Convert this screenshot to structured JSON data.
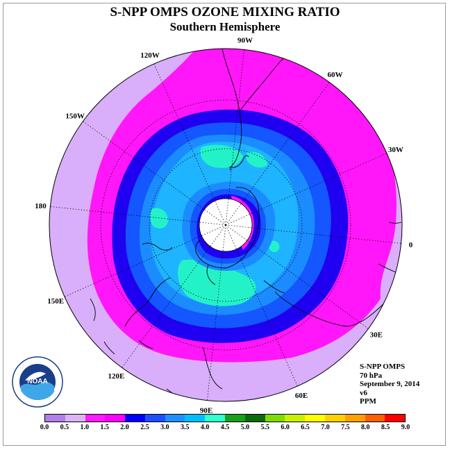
{
  "title": "S-NPP OMPS OZONE MIXING RATIO",
  "subtitle": "Southern Hemisphere",
  "longitude_labels": [
    {
      "lon": -90,
      "text": "90W"
    },
    {
      "lon": -60,
      "text": "60W"
    },
    {
      "lon": -30,
      "text": "30W"
    },
    {
      "lon": 0,
      "text": "0"
    },
    {
      "lon": 30,
      "text": "30E"
    },
    {
      "lon": 60,
      "text": "60E"
    },
    {
      "lon": 90,
      "text": "90E"
    },
    {
      "lon": 120,
      "text": "120E"
    },
    {
      "lon": 150,
      "text": "150E"
    },
    {
      "lon": 180,
      "text": "180"
    },
    {
      "lon": -150,
      "text": "150W"
    },
    {
      "lon": -120,
      "text": "120W"
    }
  ],
  "info": {
    "instrument": "S-NPP OMPS",
    "level": "70 hPa",
    "date": "September 9, 2014",
    "version": "v6",
    "units": "PPM"
  },
  "logo_text": "NOAA",
  "colorbar": {
    "ticks": [
      "0.0",
      "0.5",
      "1.0",
      "1.5",
      "2.0",
      "2.5",
      "3.0",
      "3.5",
      "4.0",
      "4.5",
      "5.0",
      "5.5",
      "6.0",
      "6.5",
      "7.0",
      "7.5",
      "8.0",
      "8.5",
      "9.0"
    ],
    "colors": [
      "#b27fe8",
      "#dcb3f5",
      "#ff1aff",
      "#ff00ff",
      "#0000ff",
      "#1e4fff",
      "#1e90ff",
      "#00bfff",
      "#30ffd0",
      "#1aa01a",
      "#0a6a0a",
      "#7fdc00",
      "#c8f000",
      "#ffff00",
      "#ffd000",
      "#ffa000",
      "#ff6000",
      "#ff0000",
      "#7f4a2a"
    ]
  },
  "map_colors": {
    "outer": "#d9aefa",
    "magenta": "#ff17f9",
    "navy": "#1f00f0",
    "blue": "#1456ff",
    "mid": "#1b8cff",
    "light": "#1eb4ff",
    "cyan": "#23f2c8",
    "polar": "#ffffff"
  }
}
